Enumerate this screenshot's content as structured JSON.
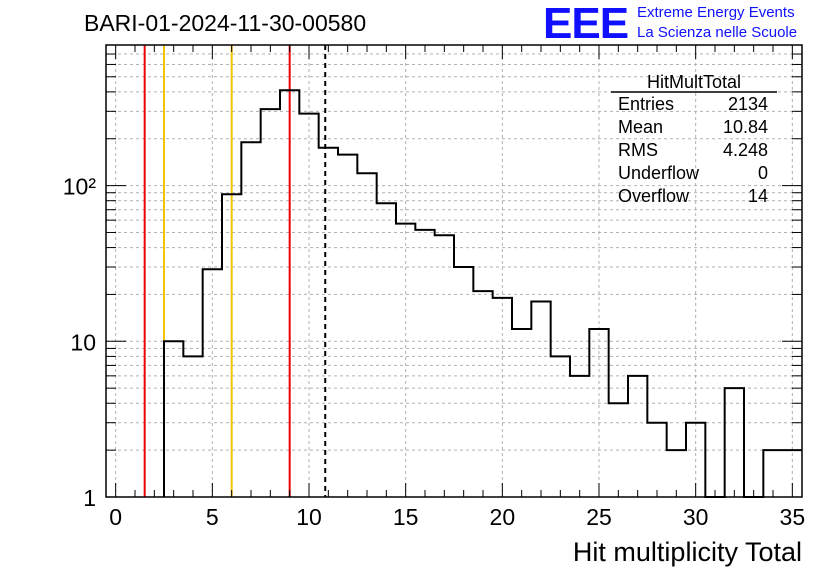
{
  "header": {
    "run_title": "BARI-01-2024-11-30-00580",
    "logo_text": "EEE",
    "logo_line1": "Extreme Energy Events",
    "logo_line2": "La Scienza nelle Scuole"
  },
  "stats": {
    "name": "HitMultTotal",
    "rows": [
      {
        "label": "Entries",
        "value": "2134"
      },
      {
        "label": "Mean",
        "value": "10.84"
      },
      {
        "label": "RMS",
        "value": "4.248"
      },
      {
        "label": "Underflow",
        "value": "0"
      },
      {
        "label": "Overflow",
        "value": "14"
      }
    ]
  },
  "colors": {
    "histogram": "#000000",
    "red_line": "#ee0000",
    "yellow_line": "#f5c400",
    "logo": "#1010ff"
  },
  "chart_data": {
    "type": "histogram",
    "xlabel": "Hit multiplicity Total",
    "ylabel": "",
    "xlim": [
      -0.5,
      35.5
    ],
    "ylim": [
      1,
      800
    ],
    "y_scale": "log",
    "grid": true,
    "x_ticks": [
      0,
      5,
      10,
      15,
      20,
      25,
      30,
      35
    ],
    "y_ticks": [
      {
        "value": 1,
        "label": "1"
      },
      {
        "value": 10,
        "label": "10"
      },
      {
        "value": 100,
        "label": "10²"
      }
    ],
    "bins": [
      {
        "lo": 2.5,
        "hi": 3.5,
        "count": 10
      },
      {
        "lo": 3.5,
        "hi": 4.5,
        "count": 8
      },
      {
        "lo": 4.5,
        "hi": 5.5,
        "count": 29
      },
      {
        "lo": 5.5,
        "hi": 6.5,
        "count": 88
      },
      {
        "lo": 6.5,
        "hi": 7.5,
        "count": 190
      },
      {
        "lo": 7.5,
        "hi": 8.5,
        "count": 310
      },
      {
        "lo": 8.5,
        "hi": 9.5,
        "count": 410
      },
      {
        "lo": 9.5,
        "hi": 10.5,
        "count": 290
      },
      {
        "lo": 10.5,
        "hi": 11.5,
        "count": 175
      },
      {
        "lo": 11.5,
        "hi": 12.5,
        "count": 158
      },
      {
        "lo": 12.5,
        "hi": 13.5,
        "count": 120
      },
      {
        "lo": 13.5,
        "hi": 14.5,
        "count": 77
      },
      {
        "lo": 14.5,
        "hi": 15.5,
        "count": 57
      },
      {
        "lo": 15.5,
        "hi": 16.5,
        "count": 52
      },
      {
        "lo": 16.5,
        "hi": 17.5,
        "count": 48
      },
      {
        "lo": 17.5,
        "hi": 18.5,
        "count": 30
      },
      {
        "lo": 18.5,
        "hi": 19.5,
        "count": 21
      },
      {
        "lo": 19.5,
        "hi": 20.5,
        "count": 19
      },
      {
        "lo": 20.5,
        "hi": 21.5,
        "count": 12
      },
      {
        "lo": 21.5,
        "hi": 22.5,
        "count": 18
      },
      {
        "lo": 22.5,
        "hi": 23.5,
        "count": 8
      },
      {
        "lo": 23.5,
        "hi": 24.5,
        "count": 6
      },
      {
        "lo": 24.5,
        "hi": 25.5,
        "count": 12
      },
      {
        "lo": 25.5,
        "hi": 26.5,
        "count": 4
      },
      {
        "lo": 26.5,
        "hi": 27.5,
        "count": 6
      },
      {
        "lo": 27.5,
        "hi": 28.5,
        "count": 3
      },
      {
        "lo": 28.5,
        "hi": 29.5,
        "count": 2
      },
      {
        "lo": 29.5,
        "hi": 30.5,
        "count": 3
      },
      {
        "lo": 30.5,
        "hi": 31.5,
        "count": 0
      },
      {
        "lo": 31.5,
        "hi": 32.5,
        "count": 5
      },
      {
        "lo": 32.5,
        "hi": 33.5,
        "count": 0
      },
      {
        "lo": 33.5,
        "hi": 35.5,
        "count": 2
      }
    ],
    "vertical_lines": [
      {
        "x": 1.5,
        "color": "#ee0000",
        "style": "solid"
      },
      {
        "x": 2.5,
        "color": "#f5c400",
        "style": "solid"
      },
      {
        "x": 6.0,
        "color": "#f5c400",
        "style": "solid"
      },
      {
        "x": 9.0,
        "color": "#ee0000",
        "style": "solid"
      },
      {
        "x": 10.84,
        "color": "#000000",
        "style": "dashed"
      }
    ]
  }
}
